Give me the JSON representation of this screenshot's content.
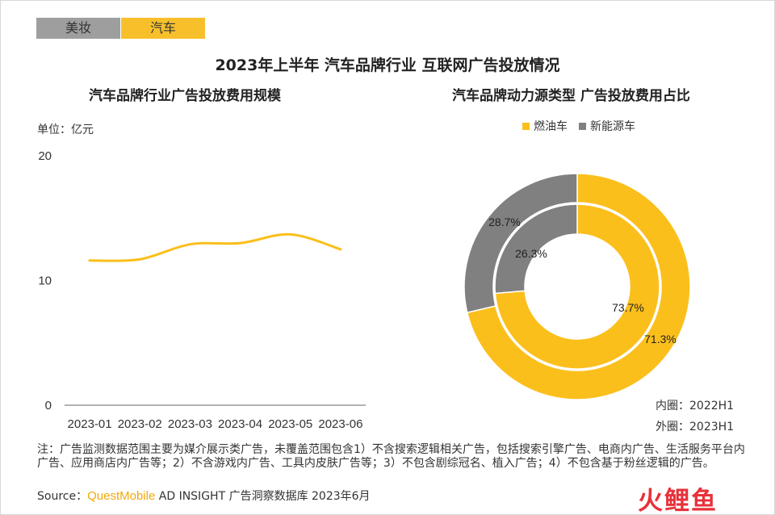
{
  "tabs": [
    {
      "label": "美妆",
      "color": "#9e9e9e",
      "active": false
    },
    {
      "label": "汽车",
      "color": "#f7c02b",
      "active": true
    }
  ],
  "title": "2023年上半年 汽车品牌行业 互联网广告投放情况",
  "left_chart_title": "汽车品牌行业广告投放费用规模",
  "unit_label": "单位：亿元",
  "right_chart_title": "汽车品牌动力源类型 广告投放费用占比",
  "legend": [
    {
      "label": "燃油车",
      "color": "#fbbf1c"
    },
    {
      "label": "新能源车",
      "color": "#808080"
    }
  ],
  "ring_labels": {
    "inner": "内圈：2022H1",
    "outer": "外圈：2023H1"
  },
  "note": "注：广告监测数据范围主要为媒介展示类广告，未覆盖范围包含1）不含搜索逻辑相关广告，包括搜索引擎广告、电商内广告、生活服务平台内广告、应用商店内广告等；2）不含游戏内广告、工具内皮肤广告等；3）不包含剧综冠名、植入广告；4）不包含基于粉丝逻辑的广告。",
  "source": {
    "prefix": "Source：",
    "brand": "QuestMobile",
    "suffix": " AD INSIGHT 广告洞察数据库 2023年6月"
  },
  "watermark_logo": "火鲤鱼",
  "chart_data": [
    {
      "type": "line",
      "title": "汽车品牌行业广告投放费用规模",
      "ylabel": "单位：亿元",
      "x": [
        "2023-01",
        "2023-02",
        "2023-03",
        "2023-04",
        "2023-05",
        "2023-06"
      ],
      "series": [
        {
          "values": [
            11.6,
            11.7,
            12.9,
            13.0,
            13.7,
            12.5
          ],
          "color": "#fbbf1c"
        }
      ],
      "ylim": [
        0,
        20
      ],
      "yticks": [
        0,
        10,
        20
      ],
      "grid": false
    },
    {
      "type": "pie",
      "title": "汽车品牌动力源类型 广告投放费用占比",
      "legend_position": "top",
      "series": [
        {
          "name": "内圈：2022H1",
          "slices": [
            {
              "label": "燃油车",
              "value": 73.7,
              "text": "73.7%"
            },
            {
              "label": "新能源车",
              "value": 26.3,
              "text": "26.3%"
            }
          ]
        },
        {
          "name": "外圈：2023H1",
          "slices": [
            {
              "label": "燃油车",
              "value": 71.3,
              "text": "71.3%"
            },
            {
              "label": "新能源车",
              "value": 28.7,
              "text": "28.7%"
            }
          ]
        }
      ],
      "colors": [
        "#fbbf1c",
        "#808080"
      ]
    }
  ]
}
